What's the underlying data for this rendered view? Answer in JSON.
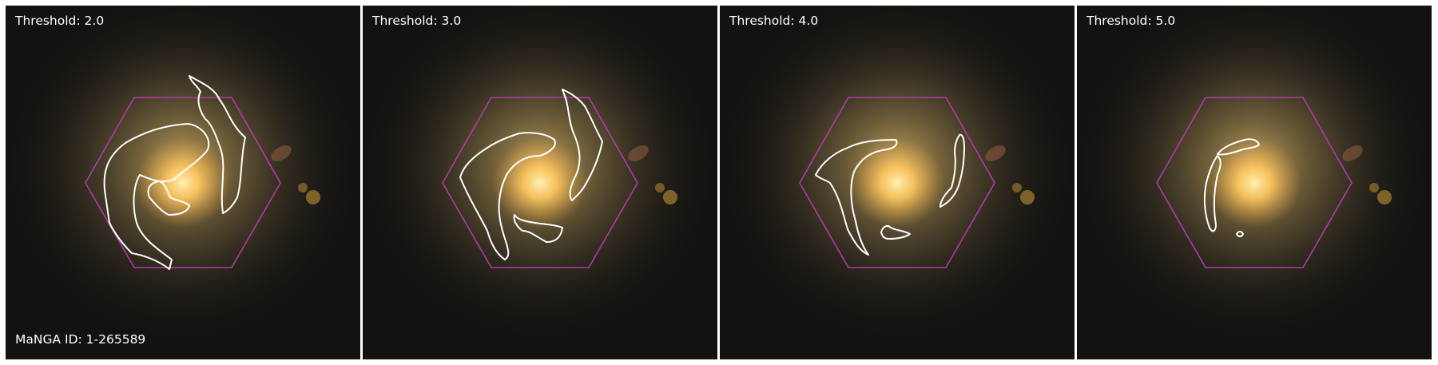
{
  "panels": [
    {
      "threshold_label": "Threshold: 2.0"
    },
    {
      "threshold_label": "Threshold: 3.0"
    },
    {
      "threshold_label": "Threshold: 4.0"
    },
    {
      "threshold_label": "Threshold: 5.0"
    }
  ],
  "manga_id_label": "MaNGA ID: 1-265589",
  "colors": {
    "background": "#ffffff",
    "sky": "#121210",
    "galaxy_core": "#ffd27a",
    "galaxy_disk": "#c8a860",
    "hexagon": "#b03aa8",
    "contour": "#ffffff",
    "label_text": "#ffffff"
  }
}
